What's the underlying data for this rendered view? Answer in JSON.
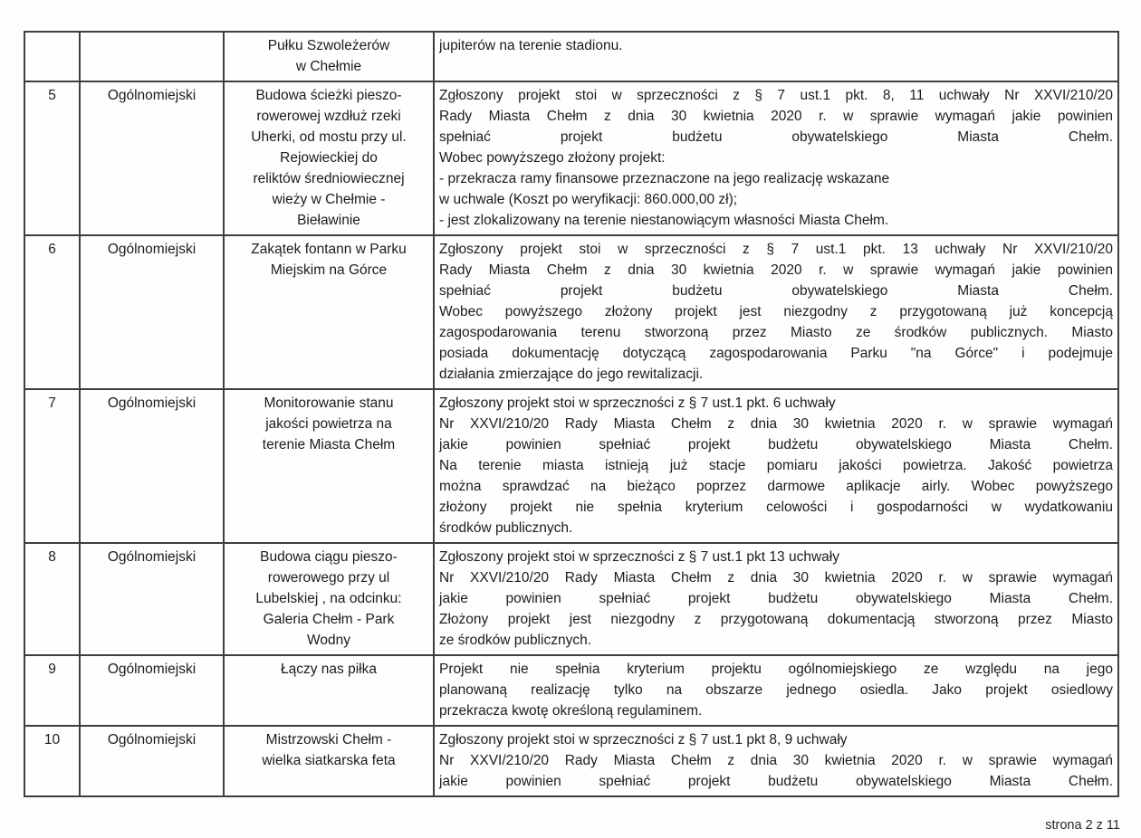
{
  "document": {
    "language": "pl",
    "footer": {
      "page_indicator": "strona 2 z 11"
    },
    "table": {
      "rows": [
        {
          "nr": "",
          "type": "",
          "name": "Pułku Szwoleżerów w Chełmie",
          "name_lines": [
            "Pułku Szwoleżerów",
            "w Chełmie"
          ],
          "justification": [
            {
              "text": "jupiterów na terenie stadionu.",
              "stretch": false
            }
          ]
        },
        {
          "nr": "5",
          "type": "Ogólnomiejski",
          "name": "Budowa ścieżki pieszo-rowerowej wzdłuż rzeki Uherki, od mostu przy ul. Rejowieckiej do reliktów średniowiecznej wieży w Chełmie - Bieławinie",
          "name_lines": [
            "Budowa ścieżki pieszo-",
            "rowerowej wzdłuż rzeki",
            "Uherki, od mostu przy ul.",
            "Rejowieckiej do",
            "reliktów średniowiecznej",
            "wieży w Chełmie -",
            "Bieławinie"
          ],
          "justification": [
            {
              "text": "Zgłoszony projekt stoi w sprzeczności z § 7 ust.1 pkt. 8, 11 uchwały Nr XXVI/210/20",
              "stretch": true
            },
            {
              "text": "Rady Miasta Chełm z dnia 30 kwietnia 2020 r. w sprawie wymagań jakie powinien",
              "stretch": true
            },
            {
              "text": "spełniać projekt budżetu obywatelskiego Miasta Chełm.",
              "stretch": true
            },
            {
              "text": "Wobec powyższego złożony projekt:",
              "stretch": false
            },
            {
              "text": "- przekracza ramy finansowe przeznaczone na jego realizację wskazane",
              "stretch": false
            },
            {
              "text": "w uchwale (Koszt po weryfikacji: 860.000,00 zł);",
              "stretch": false
            },
            {
              "text": "- jest zlokalizowany na terenie niestanowiącym własności Miasta Chełm.",
              "stretch": false
            }
          ]
        },
        {
          "nr": "6",
          "type": "Ogólnomiejski",
          "name": "Zakątek fontann w Parku Miejskim na Górce",
          "name_lines": [
            "Zakątek fontann w Parku",
            "Miejskim na Górce"
          ],
          "justification": [
            {
              "text": "Zgłoszony projekt stoi w sprzeczności z § 7 ust.1 pkt. 13 uchwały Nr XXVI/210/20",
              "stretch": true
            },
            {
              "text": "Rady Miasta Chełm z dnia 30 kwietnia 2020 r. w sprawie wymagań jakie powinien",
              "stretch": true
            },
            {
              "text": "spełniać projekt budżetu obywatelskiego Miasta Chełm.",
              "stretch": true
            },
            {
              "text": "Wobec powyższego złożony projekt jest niezgodny z przygotowaną już koncepcją",
              "stretch": true
            },
            {
              "text": "zagospodarowania terenu stworzoną przez Miasto ze środków publicznych. Miasto",
              "stretch": true
            },
            {
              "text": "posiada dokumentację dotyczącą zagospodarowania Parku \"na Górce\" i podejmuje",
              "stretch": true
            },
            {
              "text": "działania zmierzające do jego rewitalizacji.",
              "stretch": false
            }
          ]
        },
        {
          "nr": "7",
          "type": "Ogólnomiejski",
          "name": "Monitorowanie stanu jakości powietrza na terenie Miasta Chełm",
          "name_lines": [
            "Monitorowanie stanu",
            "jakości powietrza na",
            "terenie Miasta Chełm"
          ],
          "justification": [
            {
              "text": "Zgłoszony projekt stoi w sprzeczności z § 7 ust.1 pkt. 6 uchwały",
              "stretch": false
            },
            {
              "text": "Nr XXVI/210/20 Rady Miasta Chełm z dnia 30 kwietnia 2020 r. w sprawie wymagań",
              "stretch": true
            },
            {
              "text": "jakie powinien spełniać projekt budżetu obywatelskiego Miasta Chełm.",
              "stretch": true
            },
            {
              "text": "Na terenie miasta istnieją już stacje pomiaru jakości powietrza. Jakość powietrza",
              "stretch": true
            },
            {
              "text": "można sprawdzać na bieżąco poprzez darmowe aplikacje airly. Wobec powyższego",
              "stretch": true
            },
            {
              "text": "złożony projekt nie spełnia kryterium celowości i gospodarności w wydatkowaniu",
              "stretch": true
            },
            {
              "text": "środków publicznych.",
              "stretch": false
            }
          ]
        },
        {
          "nr": "8",
          "type": "Ogólnomiejski",
          "name": "Budowa ciągu pieszo-rowerowego przy ul Lubelskiej , na odcinku: Galeria Chełm - Park Wodny",
          "name_lines": [
            "Budowa ciągu pieszo-",
            "rowerowego przy ul",
            "Lubelskiej , na odcinku:",
            "Galeria Chełm - Park",
            "Wodny"
          ],
          "justification": [
            {
              "text": "Zgłoszony projekt stoi w sprzeczności z § 7 ust.1 pkt 13 uchwały",
              "stretch": false
            },
            {
              "text": "Nr XXVI/210/20 Rady Miasta Chełm z dnia 30 kwietnia 2020 r. w sprawie wymagań",
              "stretch": true
            },
            {
              "text": "jakie powinien spełniać projekt budżetu obywatelskiego Miasta Chełm.",
              "stretch": true
            },
            {
              "text": "Złożony projekt jest niezgodny z przygotowaną dokumentacją stworzoną przez Miasto",
              "stretch": true
            },
            {
              "text": "ze środków publicznych.",
              "stretch": false
            }
          ]
        },
        {
          "nr": "9",
          "type": "Ogólnomiejski",
          "name": "Łączy nas piłka",
          "name_lines": [
            "Łączy nas piłka"
          ],
          "justification": [
            {
              "text": "Projekt nie spełnia kryterium projektu ogólnomiejskiego ze względu na jego",
              "stretch": true
            },
            {
              "text": "planowaną realizację tylko na obszarze jednego osiedla. Jako projekt osiedlowy",
              "stretch": true
            },
            {
              "text": "przekracza kwotę określoną regulaminem.",
              "stretch": false
            }
          ]
        },
        {
          "nr": "10",
          "type": "Ogólnomiejski",
          "name": "Mistrzowski Chełm - wielka siatkarska feta",
          "name_lines": [
            "Mistrzowski Chełm -",
            "wielka siatkarska feta"
          ],
          "justification": [
            {
              "text": "Zgłoszony projekt stoi w sprzeczności z § 7 ust.1 pkt 8, 9 uchwały",
              "stretch": false
            },
            {
              "text": "Nr XXVI/210/20 Rady Miasta Chełm z dnia 30 kwietnia 2020 r. w sprawie wymagań",
              "stretch": true
            },
            {
              "text": "jakie powinien spełniać projekt budżetu obywatelskiego Miasta Chełm.",
              "stretch": true
            }
          ]
        }
      ]
    }
  }
}
